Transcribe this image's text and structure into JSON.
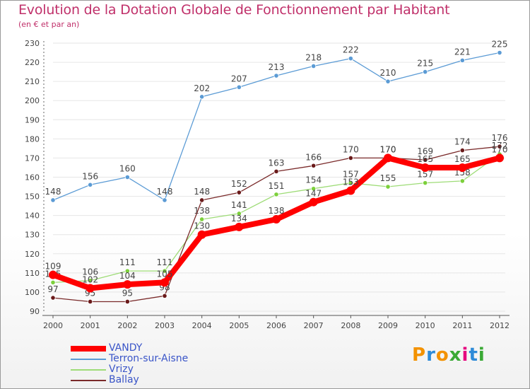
{
  "header": {
    "title": "Evolution de la Dotation Globale de Fonctionnement par Habitant",
    "subtitle": "(en € et par an)"
  },
  "logo": {
    "letters": [
      "P",
      "r",
      "o",
      "x",
      "i",
      "t",
      "i"
    ]
  },
  "colors": {
    "title": "#c0306a",
    "axis": "#555555",
    "grid": "#e5e5e5",
    "legend_text": "#3a55c8"
  },
  "chart_data": {
    "type": "line",
    "title": "Evolution de la Dotation Globale de Fonctionnement par Habitant",
    "subtitle": "(en € et par an)",
    "x": [
      "2000",
      "2001",
      "2002",
      "2003",
      "2004",
      "2005",
      "2006",
      "2007",
      "2008",
      "2009",
      "2010",
      "2011",
      "2012"
    ],
    "yticks": [
      90,
      100,
      110,
      120,
      130,
      140,
      150,
      160,
      170,
      180,
      190,
      200,
      210,
      220,
      230
    ],
    "ylim": [
      90,
      230
    ],
    "grid": true,
    "legend_position": "bottom-left",
    "series": [
      {
        "name": "Terron-sur-Aisne",
        "color": "#5b9bd5",
        "marker_color": "#5b9bd5",
        "width": 1.3,
        "values": [
          148,
          156,
          160,
          148,
          202,
          207,
          213,
          218,
          222,
          210,
          215,
          221,
          225
        ],
        "labels": [
          "148",
          "156",
          "160",
          "148",
          "202",
          "207",
          "213",
          "218",
          "222",
          "210",
          "215",
          "221",
          "225"
        ]
      },
      {
        "name": "Vrizy",
        "color": "#9edc77",
        "marker_color": "#7cd03b",
        "width": 1.3,
        "values": [
          105,
          106,
          111,
          111,
          138,
          141,
          151,
          154,
          157,
          155,
          157,
          158,
          172
        ],
        "labels": [
          "105",
          "106",
          "111",
          "111",
          "138",
          "141",
          "151",
          "154",
          "157",
          "155",
          "157",
          "158",
          "172"
        ]
      },
      {
        "name": "Ballay",
        "color": "#7a2a2a",
        "marker_color": "#6a1a1a",
        "width": 1.3,
        "values": [
          97,
          95,
          95,
          98,
          148,
          152,
          163,
          166,
          170,
          170,
          169,
          174,
          176
        ],
        "labels": [
          "97",
          "95",
          "95",
          "98",
          "148",
          "152",
          "163",
          "166",
          "170",
          "170",
          "169",
          "174",
          "176"
        ]
      },
      {
        "name": "VANDY",
        "color": "#ff0000",
        "marker_color": "#ff0000",
        "width": 8,
        "values": [
          109,
          102,
          104,
          105,
          130,
          134,
          138,
          147,
          153,
          170,
          165,
          165,
          170
        ],
        "labels": [
          "109",
          "102",
          "104",
          "105",
          "130",
          "134",
          "138",
          "147",
          "153",
          "170",
          "165",
          "165",
          "170"
        ]
      }
    ],
    "legend": [
      {
        "name": "VANDY",
        "color": "#ff0000",
        "width": 8
      },
      {
        "name": "Terron-sur-Aisne",
        "color": "#5b9bd5",
        "width": 2
      },
      {
        "name": "Vrizy",
        "color": "#9edc77",
        "width": 2
      },
      {
        "name": "Ballay",
        "color": "#7a2a2a",
        "width": 2
      }
    ]
  }
}
